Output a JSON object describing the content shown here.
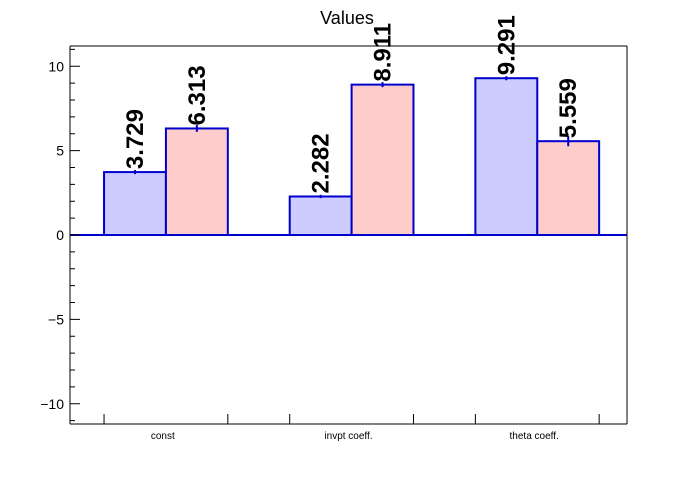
{
  "chart_data": {
    "type": "bar",
    "title": "Values",
    "categories": [
      "const",
      "invpt coeff.",
      "theta coeff."
    ],
    "series": [
      {
        "values": [
          3.729,
          2.282,
          9.291
        ],
        "errors": [
          0.12,
          0.1,
          0.12
        ]
      },
      {
        "values": [
          6.313,
          8.911,
          5.559
        ],
        "errors": [
          0.2,
          0.15,
          0.3
        ]
      }
    ],
    "value_labels": [
      [
        "3.729",
        "2.282",
        "9.291"
      ],
      [
        "6.313",
        "8.911",
        "5.559"
      ]
    ],
    "ylim": [
      -11.2,
      11.2
    ],
    "yticks": [
      -10,
      -5,
      0,
      5,
      10
    ],
    "ytick_labels": [
      "−10",
      "−5",
      "0",
      "5",
      "10"
    ],
    "grid": false,
    "colors": {
      "series_fill": [
        "#ccccff",
        "#ffcccc"
      ],
      "bar_edge": "#0000cc",
      "zero_line": "#0000cc",
      "axis": "#000000"
    }
  }
}
